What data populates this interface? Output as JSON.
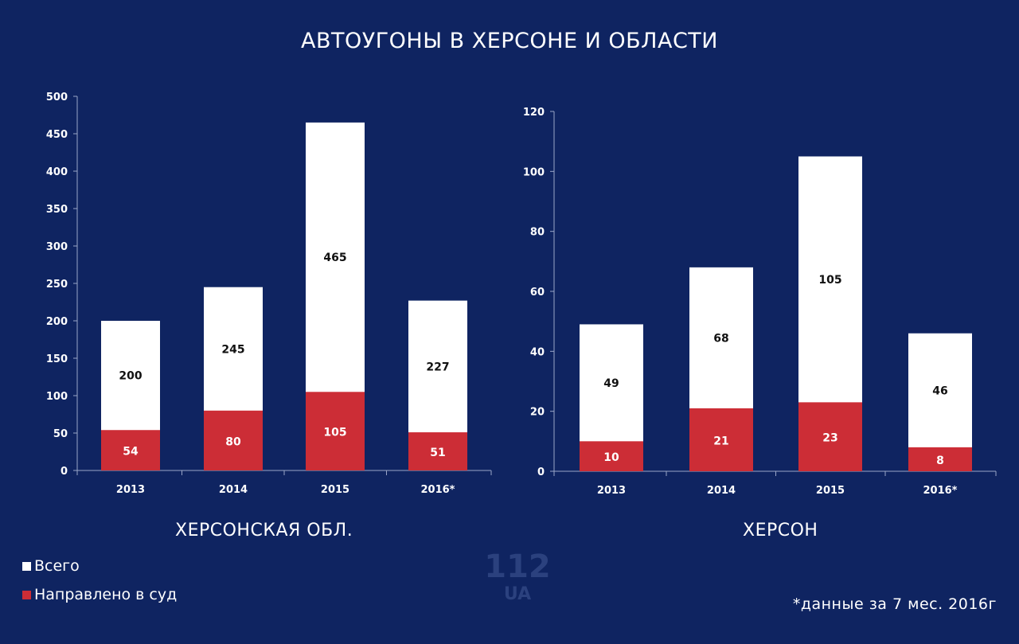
{
  "title": "АВТОУГОНЫ В ХЕРСОНЕ И ОБЛАСТИ",
  "legend": {
    "total_label": "Всего",
    "court_label": "Направлено в суд"
  },
  "colors": {
    "background": "#0f2461",
    "total": "#ffffff",
    "court": "#cc2d36"
  },
  "footnote": "*данные за 7 мес. 2016г",
  "logo": {
    "number": "112",
    "suffix": "UA"
  },
  "chart_data": [
    {
      "type": "bar",
      "region": "ХЕРСОНСКАЯ ОБЛ.",
      "categories": [
        "2013",
        "2014",
        "2015",
        "2016*"
      ],
      "series": [
        {
          "name": "Всего",
          "values": [
            200,
            245,
            465,
            227
          ]
        },
        {
          "name": "Направлено в суд",
          "values": [
            54,
            80,
            105,
            51
          ]
        }
      ],
      "ylim": [
        0,
        500
      ],
      "yticks": [
        0,
        50,
        100,
        150,
        200,
        250,
        300,
        350,
        400,
        450,
        500
      ],
      "grid": false,
      "legend_position": "bottom-left"
    },
    {
      "type": "bar",
      "region": "ХЕРСОН",
      "categories": [
        "2013",
        "2014",
        "2015",
        "2016*"
      ],
      "series": [
        {
          "name": "Всего",
          "values": [
            49,
            68,
            105,
            46
          ]
        },
        {
          "name": "Направлено в суд",
          "values": [
            10,
            21,
            23,
            8
          ]
        }
      ],
      "ylim": [
        0,
        120
      ],
      "yticks": [
        0,
        20,
        40,
        60,
        80,
        100,
        120
      ],
      "grid": false,
      "legend_position": "bottom-left"
    }
  ]
}
